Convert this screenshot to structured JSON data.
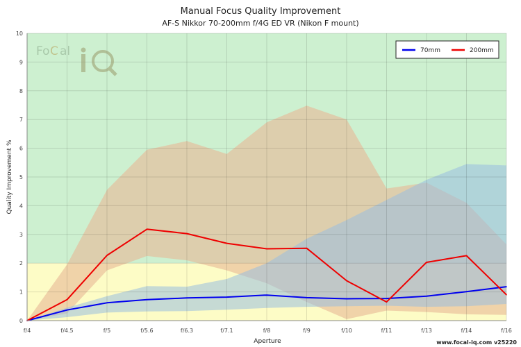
{
  "chart_data": {
    "type": "line",
    "title": "Manual Focus Quality Improvement",
    "subtitle": "AF-S Nikkor 70-200mm f/4G ED VR (Nikon F mount)",
    "xlabel": "Aperture",
    "ylabel": "Quality Improvement %",
    "categories": [
      "f/4",
      "f/4.5",
      "f/5",
      "f/5.6",
      "f/6.3",
      "f/7.1",
      "f/8",
      "f/9",
      "f/10",
      "f/11",
      "f/13",
      "f/14",
      "f/16"
    ],
    "ylim": [
      0,
      10
    ],
    "yticks": [
      0,
      1,
      2,
      3,
      4,
      5,
      6,
      7,
      8,
      9,
      10
    ],
    "grid": true,
    "legend_position": "top-right",
    "threshold": 2,
    "zones": [
      {
        "from": 0,
        "to": 2,
        "color": "#fdfcc6"
      },
      {
        "from": 2,
        "to": 10,
        "color": "#cdf0d0"
      }
    ],
    "series": [
      {
        "name": "70mm",
        "color": "#0000ee",
        "band_color": "#99bde0",
        "values": [
          0.0,
          0.37,
          0.62,
          0.73,
          0.79,
          0.82,
          0.89,
          0.8,
          0.76,
          0.77,
          0.85,
          1.01,
          1.18
        ],
        "band_low": [
          0.0,
          0.12,
          0.28,
          0.32,
          0.33,
          0.38,
          0.44,
          0.48,
          0.5,
          0.52,
          0.48,
          0.5,
          0.58
        ],
        "band_high": [
          0.0,
          0.45,
          0.85,
          1.2,
          1.18,
          1.45,
          2.0,
          2.85,
          3.5,
          4.2,
          4.9,
          5.45,
          5.4
        ]
      },
      {
        "name": "200mm",
        "color": "#ee0000",
        "band_color": "#e8b796",
        "values": [
          0.0,
          0.73,
          2.27,
          3.18,
          3.03,
          2.69,
          2.5,
          2.52,
          1.39,
          0.65,
          2.03,
          2.26,
          0.9
        ],
        "band_low": [
          0.0,
          0.25,
          1.75,
          2.25,
          2.1,
          1.75,
          1.3,
          0.65,
          0.05,
          0.35,
          0.3,
          0.22,
          0.2
        ],
        "band_high": [
          0.0,
          1.95,
          4.55,
          5.95,
          6.25,
          5.8,
          6.9,
          7.48,
          7.0,
          4.6,
          4.8,
          4.1,
          2.65
        ]
      }
    ]
  },
  "logo": {
    "text": "FoCal iQ"
  },
  "footer": {
    "text": "www.focal-iq.com  v25220"
  }
}
